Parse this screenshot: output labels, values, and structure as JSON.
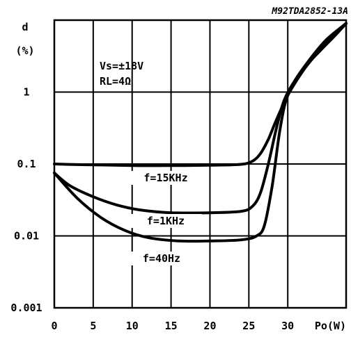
{
  "chart_data": {
    "type": "line",
    "reference": "M92TDA2852-13A",
    "ylabel": "d",
    "ylabel_unit": "(%)",
    "xlabel": "Po(W)",
    "yscale": "log",
    "ylim": [
      0.001,
      10
    ],
    "xlim": [
      0,
      37.5
    ],
    "grid": true,
    "x_ticks": [
      "0",
      "5",
      "10",
      "15",
      "20",
      "25",
      "30"
    ],
    "y_ticks": [
      {
        "value": 1,
        "label": "1"
      },
      {
        "value": 0.1,
        "label": "0.1"
      },
      {
        "value": 0.01,
        "label": "0.01"
      },
      {
        "value": 0.001,
        "label": "0.001"
      }
    ],
    "annotations": [
      "Vs=±18V",
      "RL=4Ω"
    ],
    "series": [
      {
        "name": "f=15KHz",
        "x": [
          0,
          3,
          6,
          10,
          15,
          20,
          24,
          25.5,
          26.5,
          27.5,
          28.5,
          30,
          32,
          34,
          36,
          37.5
        ],
        "y": [
          0.1,
          0.098,
          0.097,
          0.095,
          0.095,
          0.096,
          0.099,
          0.11,
          0.14,
          0.22,
          0.4,
          0.9,
          2,
          3.7,
          6.2,
          9
        ]
      },
      {
        "name": "f=1KHz",
        "x": [
          0,
          2,
          5,
          8,
          11,
          15,
          20,
          24,
          25.5,
          26.5,
          27.5,
          28.5,
          29.5,
          31,
          33,
          35,
          37.5
        ],
        "y": [
          0.075,
          0.05,
          0.035,
          0.027,
          0.023,
          0.021,
          0.021,
          0.022,
          0.026,
          0.04,
          0.1,
          0.3,
          0.75,
          1.5,
          3,
          5.4,
          9
        ]
      },
      {
        "name": "f=40Hz",
        "x": [
          0,
          3,
          6,
          9,
          12,
          16,
          20,
          24,
          26,
          27,
          28,
          29,
          30,
          32,
          34,
          36,
          37.5
        ],
        "y": [
          0.075,
          0.033,
          0.018,
          0.012,
          0.0095,
          0.0085,
          0.0085,
          0.0088,
          0.01,
          0.014,
          0.05,
          0.3,
          0.9,
          2.1,
          3.6,
          6,
          9
        ]
      }
    ]
  }
}
